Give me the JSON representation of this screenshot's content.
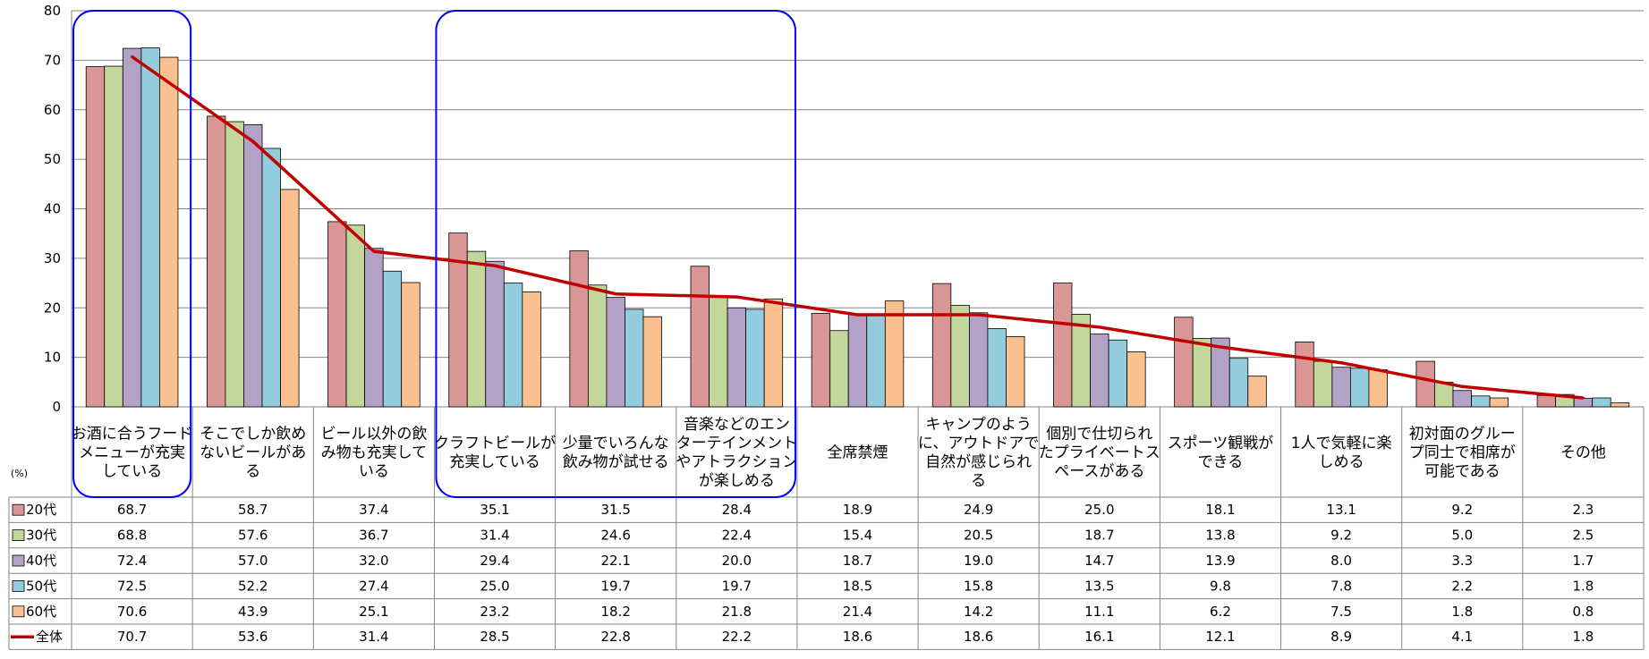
{
  "chart_data": {
    "type": "bar",
    "unit_label": "(%)",
    "ylim": [
      0,
      80
    ],
    "yticks": [
      "0",
      "10",
      "20",
      "30",
      "40",
      "50",
      "60",
      "70",
      "80"
    ],
    "grid": true,
    "legend": "data-table-rows",
    "categories": [
      "お酒に合うフードメニューが充実している",
      "そこでしか飲めないビールがある",
      "ビール以外の飲み物も充実している",
      "クラフトビールが充実している",
      "少量でいろんな飲み物が試せる",
      "音楽などのエンターテインメントやアトラクションが楽しめる",
      "全席禁煙",
      "キャンプのように、アウトドアで自然が感じられる",
      "個別で仕切られたプライベートスペースがある",
      "スポーツ観戦ができる",
      "1人で気軽に楽しめる",
      "初対面のグループ同士で相席が可能である",
      "その他"
    ],
    "category_lines": [
      [
        "お酒に合うフード",
        "メニューが充実",
        "している"
      ],
      [
        "そこでしか飲め",
        "ないビールがあ",
        "る"
      ],
      [
        "ビール以外の飲",
        "み物も充実して",
        "いる"
      ],
      [
        "クラフトビールが",
        "充実している"
      ],
      [
        "少量でいろんな",
        "飲み物が試せる"
      ],
      [
        "音楽などのエン",
        "ターテインメント",
        "やアトラクション",
        "が楽しめる"
      ],
      [
        "全席禁煙"
      ],
      [
        "キャンプのよう",
        "に、アウトドアで",
        "自然が感じられ",
        "る"
      ],
      [
        "個別で仕切られ",
        "たプライベートス",
        "ペースがある"
      ],
      [
        "スポーツ観戦が",
        "できる"
      ],
      [
        "1人で気軽に楽",
        "しめる"
      ],
      [
        "初対面のグルー",
        "プ同士で相席が",
        "可能である"
      ],
      [
        "その他"
      ]
    ],
    "series": [
      {
        "name": "20代",
        "type": "bar",
        "color": "#d99694",
        "values": [
          68.7,
          58.7,
          37.4,
          35.1,
          31.5,
          28.4,
          18.9,
          24.9,
          25.0,
          18.1,
          13.1,
          9.2,
          2.3
        ],
        "labels": [
          "68.7",
          "58.7",
          "37.4",
          "35.1",
          "31.5",
          "28.4",
          "18.9",
          "24.9",
          "25.0",
          "18.1",
          "13.1",
          "9.2",
          "2.3"
        ]
      },
      {
        "name": "30代",
        "type": "bar",
        "color": "#c3d69b",
        "values": [
          68.8,
          57.6,
          36.7,
          31.4,
          24.6,
          22.4,
          15.4,
          20.5,
          18.7,
          13.8,
          9.2,
          5.0,
          2.5
        ],
        "labels": [
          "68.8",
          "57.6",
          "36.7",
          "31.4",
          "24.6",
          "22.4",
          "15.4",
          "20.5",
          "18.7",
          "13.8",
          "9.2",
          "5.0",
          "2.5"
        ]
      },
      {
        "name": "40代",
        "type": "bar",
        "color": "#b3a2c7",
        "values": [
          72.4,
          57.0,
          32.0,
          29.4,
          22.1,
          20.0,
          18.7,
          19.0,
          14.7,
          13.9,
          8.0,
          3.3,
          1.7
        ],
        "labels": [
          "72.4",
          "57.0",
          "32.0",
          "29.4",
          "22.1",
          "20.0",
          "18.7",
          "19.0",
          "14.7",
          "13.9",
          "8.0",
          "3.3",
          "1.7"
        ]
      },
      {
        "name": "50代",
        "type": "bar",
        "color": "#93cddd",
        "values": [
          72.5,
          52.2,
          27.4,
          25.0,
          19.7,
          19.7,
          18.5,
          15.8,
          13.5,
          9.8,
          7.8,
          2.2,
          1.8
        ],
        "labels": [
          "72.5",
          "52.2",
          "27.4",
          "25.0",
          "19.7",
          "19.7",
          "18.5",
          "15.8",
          "13.5",
          "9.8",
          "7.8",
          "2.2",
          "1.8"
        ]
      },
      {
        "name": "60代",
        "type": "bar",
        "color": "#fac090",
        "values": [
          70.6,
          43.9,
          25.1,
          23.2,
          18.2,
          21.8,
          21.4,
          14.2,
          11.1,
          6.2,
          7.5,
          1.8,
          0.8
        ],
        "labels": [
          "70.6",
          "43.9",
          "25.1",
          "23.2",
          "18.2",
          "21.8",
          "21.4",
          "14.2",
          "11.1",
          "6.2",
          "7.5",
          "1.8",
          "0.8"
        ]
      },
      {
        "name": "全体",
        "type": "line",
        "color": "#c00000",
        "values": [
          70.7,
          53.6,
          31.4,
          28.5,
          22.8,
          22.2,
          18.6,
          18.6,
          16.1,
          12.1,
          8.9,
          4.1,
          1.8
        ],
        "labels": [
          "70.7",
          "53.6",
          "31.4",
          "28.5",
          "22.8",
          "22.2",
          "18.6",
          "18.6",
          "16.1",
          "12.1",
          "8.9",
          "4.1",
          "1.8"
        ]
      }
    ],
    "highlight_groups": [
      [
        0,
        0
      ],
      [
        3,
        5
      ]
    ],
    "highlight_color": "#0000ff"
  }
}
